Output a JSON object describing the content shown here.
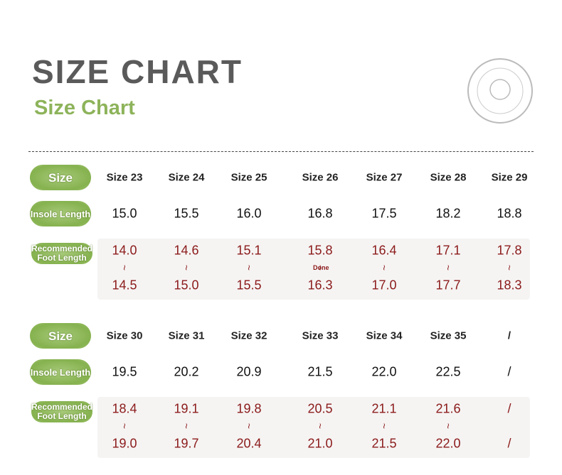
{
  "header": {
    "title": "SIZE CHART",
    "subtitle": "Size Chart"
  },
  "labels": {
    "size": "Size",
    "insole": "Insole Length",
    "foot": "Recommended Foot Length"
  },
  "range_separator": "~",
  "note": "Done",
  "tables": [
    {
      "sizes": [
        "Size 23",
        "Size 24",
        "Size 25",
        "Size 26",
        "Size 27",
        "Size 28",
        "Size 29"
      ],
      "insole": [
        "15.0",
        "15.5",
        "16.0",
        "16.8",
        "17.5",
        "18.2",
        "18.8"
      ],
      "foot_min": [
        "14.0",
        "14.6",
        "15.1",
        "15.8",
        "16.4",
        "17.1",
        "17.8"
      ],
      "foot_max": [
        "14.5",
        "15.0",
        "15.5",
        "16.3",
        "17.0",
        "17.7",
        "18.3"
      ]
    },
    {
      "sizes": [
        "Size 30",
        "Size 31",
        "Size 32",
        "Size 33",
        "Size 34",
        "Size 35",
        "/"
      ],
      "insole": [
        "19.5",
        "20.2",
        "20.9",
        "21.5",
        "22.0",
        "22.5",
        "/"
      ],
      "foot_min": [
        "18.4",
        "19.1",
        "19.8",
        "20.5",
        "21.1",
        "21.6",
        "/"
      ],
      "foot_max": [
        "19.0",
        "19.7",
        "20.4",
        "21.0",
        "21.5",
        "22.0",
        "/"
      ]
    }
  ]
}
